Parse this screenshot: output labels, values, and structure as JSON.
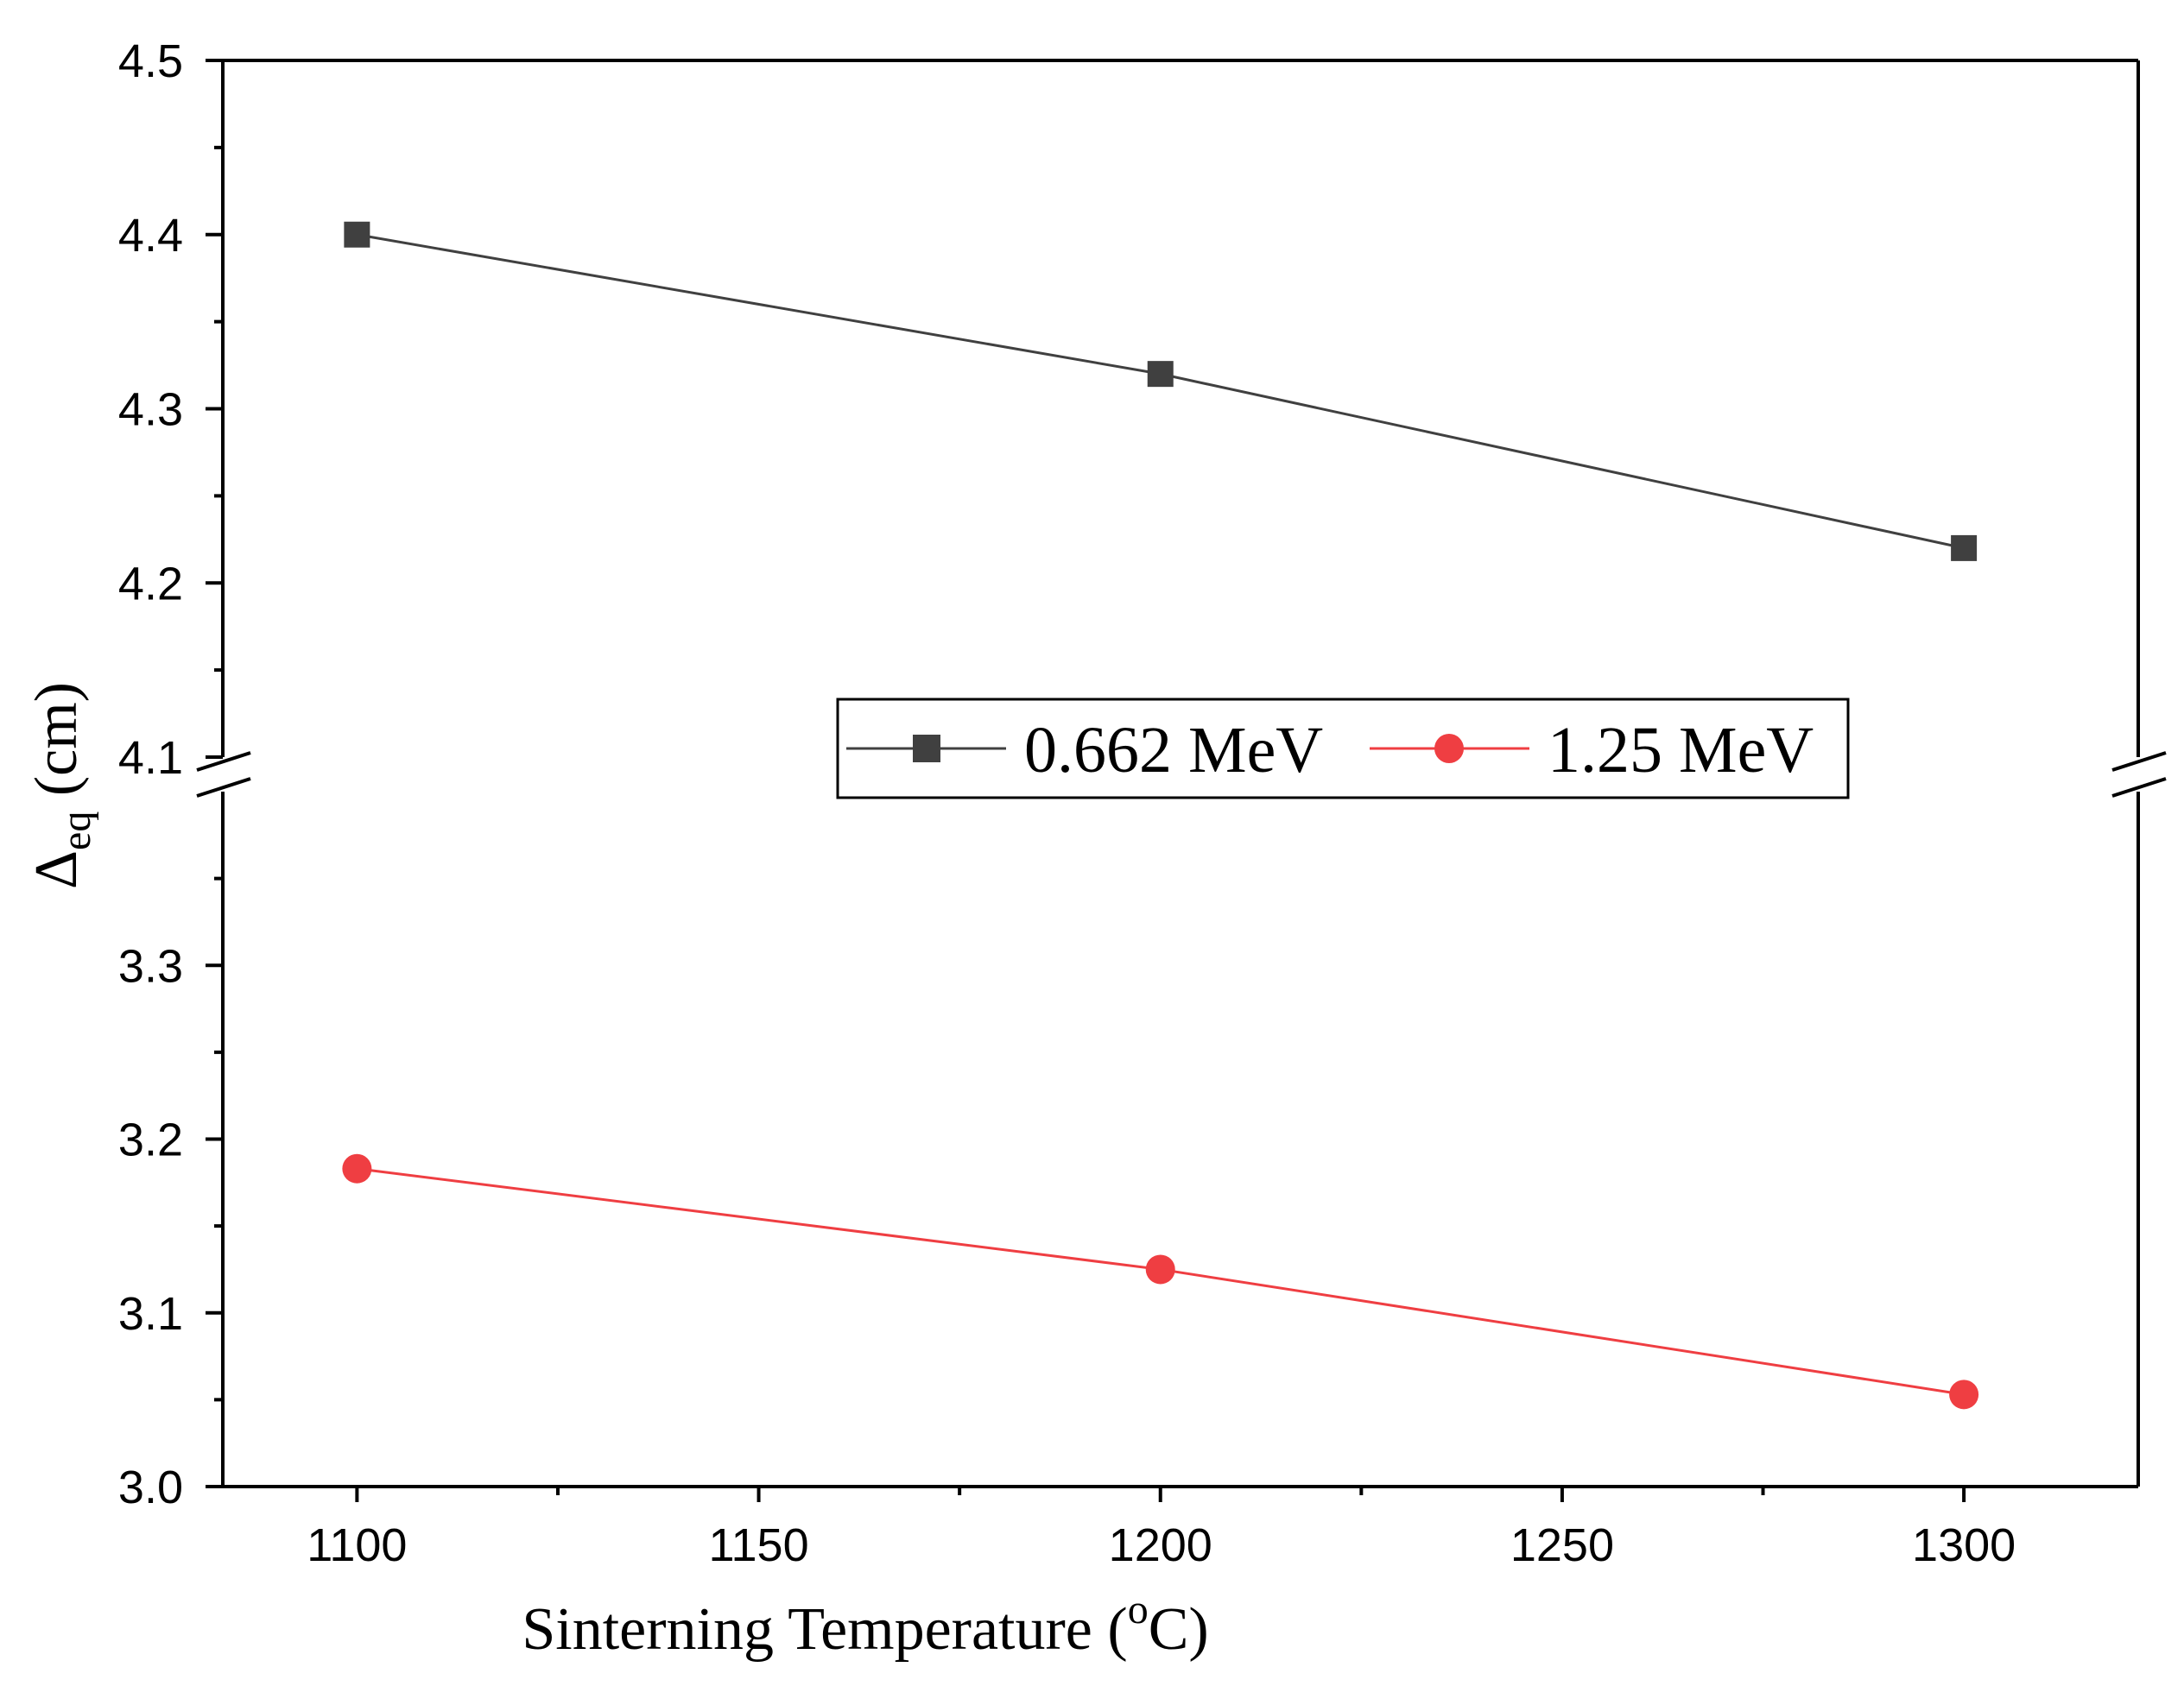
{
  "chart_data": {
    "type": "line",
    "title": "",
    "xlabel": {
      "prefix": "Sinterning Temperature (",
      "superscript": "o",
      "suffix": "C)"
    },
    "ylabel": {
      "symbol": "Δ",
      "subscript": "eq",
      "unit": " (cm)"
    },
    "x": [
      1100,
      1200,
      1300
    ],
    "x_ticks": [
      "1100",
      "1150",
      "1200",
      "1250",
      "1300"
    ],
    "xlim": [
      1083.3,
      1321.7
    ],
    "y_axis_break": true,
    "ylim_lower": [
      3.0,
      3.4
    ],
    "ylim_upper": [
      4.1,
      4.5
    ],
    "y_ticks_lower": [
      "3.0",
      "3.1",
      "3.2",
      "3.3"
    ],
    "y_ticks_upper": [
      "4.1",
      "4.2",
      "4.3",
      "4.4",
      "4.5"
    ],
    "series": [
      {
        "name": "0.662 MeV",
        "values": [
          4.4,
          4.32,
          4.22
        ],
        "color": "#404040",
        "marker": "square"
      },
      {
        "name": "1.25 MeV",
        "values": [
          3.183,
          3.125,
          3.053
        ],
        "color": "#ef3e42",
        "marker": "circle"
      }
    ],
    "legend_placement": "center-right"
  }
}
